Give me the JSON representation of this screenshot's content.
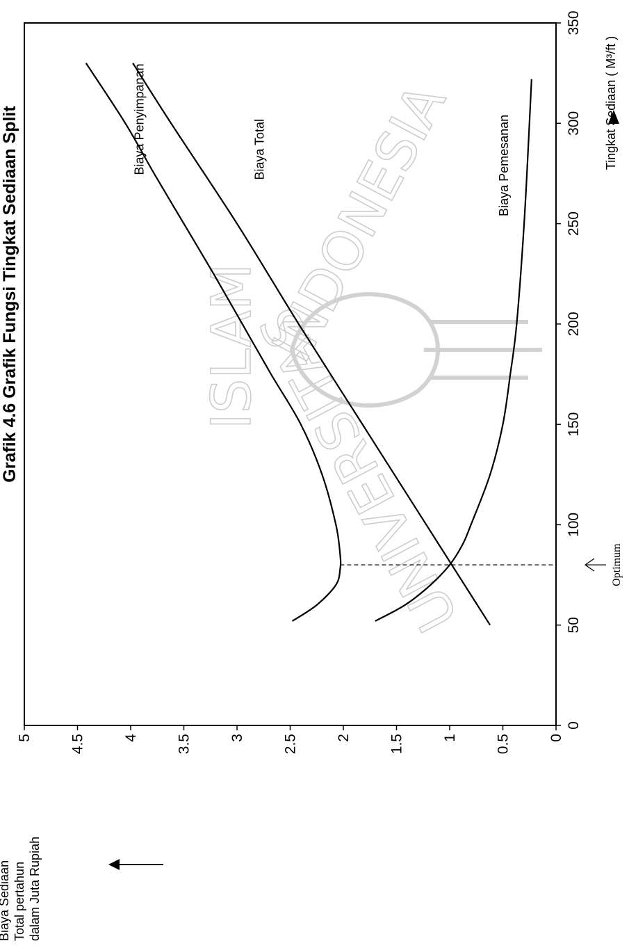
{
  "chart_data": {
    "type": "line",
    "title": "Grafik 4.6 Grafik Fungsi Tingkat Sediaan Split",
    "xlabel": "Tingkat Sediaan ( M³/ft )",
    "ylabel_lines": [
      "Biaya Sediaan",
      "Total pertahun",
      "dalam Juta Rupiah"
    ],
    "xlim": [
      0,
      350
    ],
    "ylim": [
      0,
      5
    ],
    "x_ticks": [
      "0",
      "50",
      "100",
      "150",
      "200",
      "250",
      "300",
      "350"
    ],
    "y_ticks": [
      "0",
      "0.5",
      "1",
      "1.5",
      "2",
      "2.5",
      "3",
      "3.5",
      "4",
      "4.5",
      "5"
    ],
    "grid": false,
    "legend": "none",
    "orientation": "rotated 90° counter-clockwise on page",
    "series": [
      {
        "name": "Biaya Total",
        "x": [
          52,
          60,
          70,
          78,
          85,
          100,
          125,
          150,
          175,
          200,
          225,
          250,
          275,
          300,
          330
        ],
        "y": [
          2.48,
          2.25,
          2.07,
          2.03,
          2.03,
          2.07,
          2.2,
          2.4,
          2.68,
          2.95,
          3.22,
          3.5,
          3.78,
          4.05,
          4.42
        ]
      },
      {
        "name": "Biaya Penyimpanan",
        "x": [
          50,
          100,
          150,
          200,
          250,
          300,
          330
        ],
        "y": [
          0.62,
          1.22,
          1.82,
          2.42,
          3.0,
          3.62,
          3.98
        ]
      },
      {
        "name": "Biaya Pemesanan",
        "x": [
          52,
          60,
          70,
          80,
          90,
          100,
          125,
          150,
          175,
          200,
          250,
          300,
          322
        ],
        "y": [
          1.7,
          1.42,
          1.18,
          1.0,
          0.88,
          0.8,
          0.62,
          0.5,
          0.43,
          0.37,
          0.3,
          0.25,
          0.23
        ]
      }
    ],
    "annotations": [
      {
        "text": "Optimum",
        "x": 80
      }
    ],
    "optimum_x": 80,
    "optimum_y": 1.0
  },
  "watermark": {
    "top_text": "ISLAM",
    "left_text": "UNIVERSITAS",
    "right_text": "INDONESIA"
  }
}
